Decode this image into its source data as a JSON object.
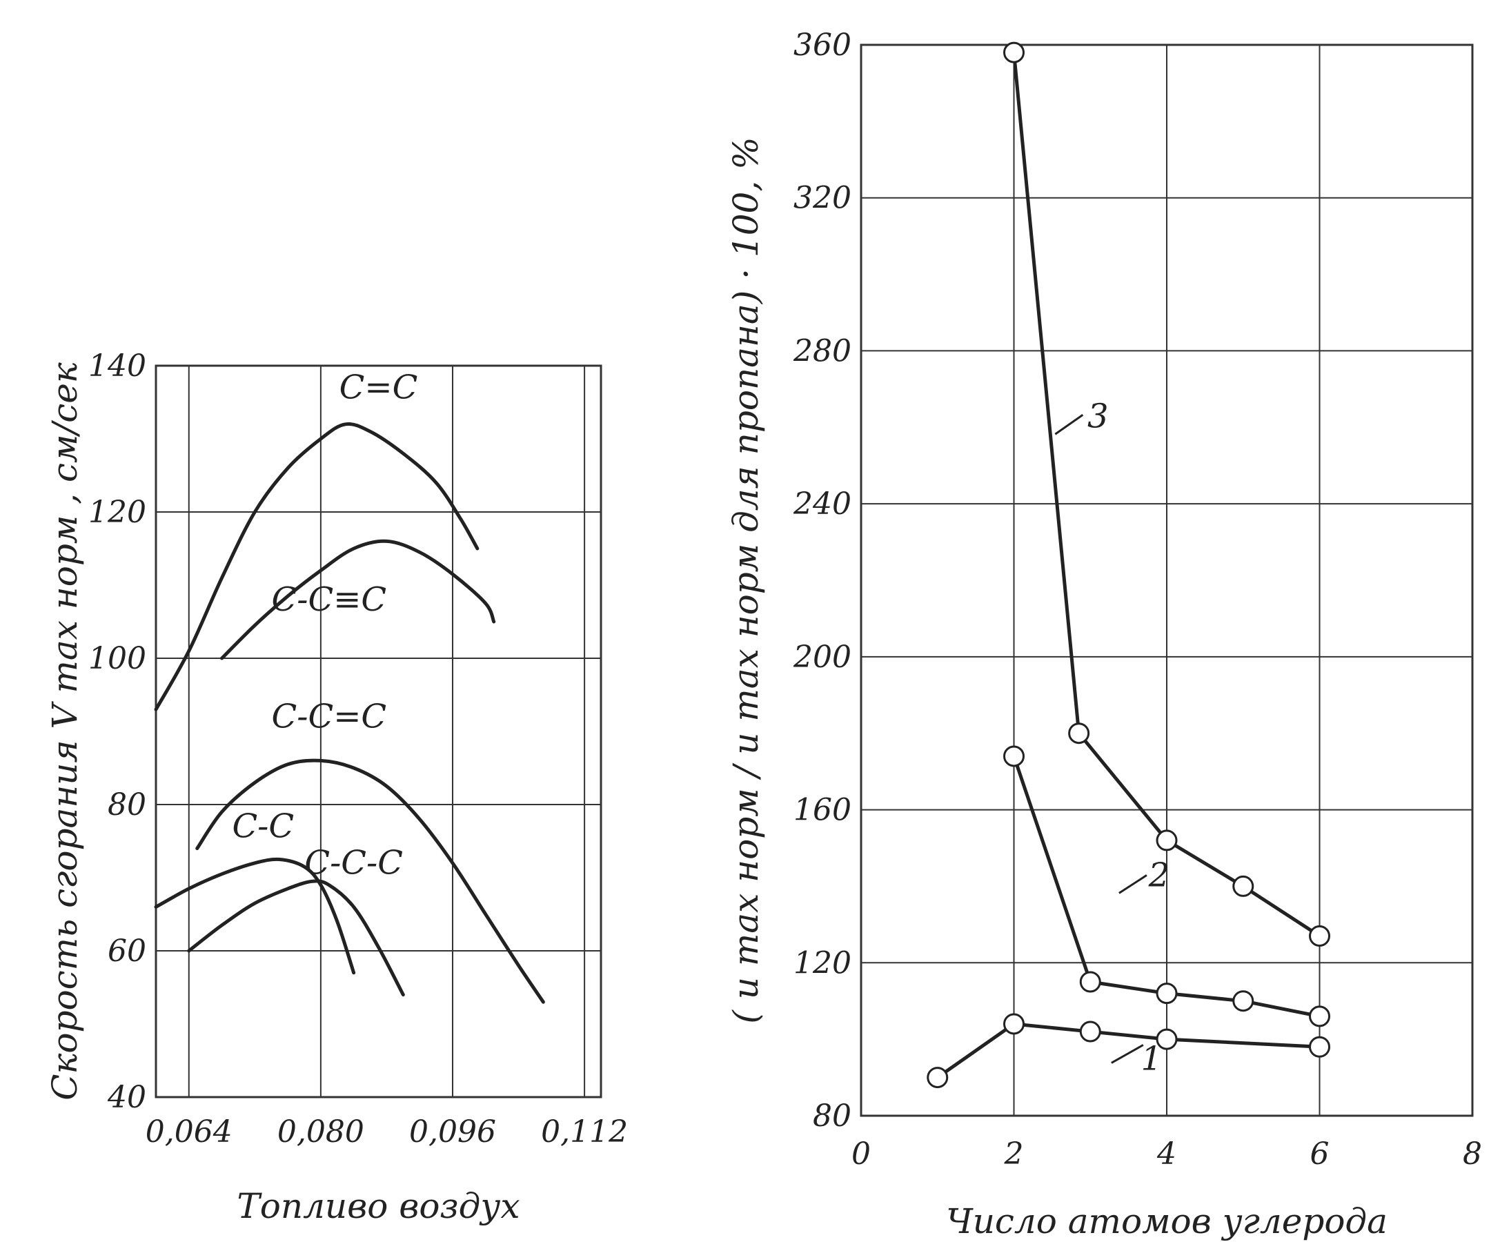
{
  "colors": {
    "ink": "#222222",
    "grid": "#333333",
    "paper": "#ffffff"
  },
  "chart_data": [
    {
      "type": "line",
      "xlabel": "Топливо воздух",
      "ylabel": "Скорость сгорания V max норм , см/сек",
      "xlim": [
        0.06,
        0.114
      ],
      "ylim": [
        40,
        140
      ],
      "xticks": [
        0.064,
        0.08,
        0.096,
        0.112
      ],
      "xtick_labels": [
        "0,064",
        "0,080",
        "0,096",
        "0,112"
      ],
      "yticks": [
        40,
        60,
        80,
        100,
        120,
        140
      ],
      "ytick_labels": [
        "40",
        "60",
        "80",
        "100",
        "120",
        "140"
      ],
      "grid": true,
      "series": [
        {
          "name": "C=C",
          "x": [
            0.06,
            0.064,
            0.068,
            0.072,
            0.076,
            0.08,
            0.083,
            0.086,
            0.09,
            0.094,
            0.097,
            0.099
          ],
          "values": [
            93,
            101,
            111,
            120,
            126,
            130,
            132,
            131,
            128,
            124,
            119,
            115
          ]
        },
        {
          "name": "C-C≡C",
          "x": [
            0.068,
            0.072,
            0.076,
            0.08,
            0.084,
            0.088,
            0.092,
            0.096,
            0.1,
            0.101
          ],
          "values": [
            100,
            104.5,
            108.5,
            112,
            115,
            116,
            114.5,
            111.5,
            107.5,
            105
          ]
        },
        {
          "name": "C-C=C",
          "x": [
            0.065,
            0.068,
            0.072,
            0.076,
            0.08,
            0.084,
            0.088,
            0.092,
            0.096,
            0.1,
            0.104,
            0.107
          ],
          "values": [
            74,
            79,
            83,
            85.5,
            86,
            85,
            82.5,
            78,
            72,
            65,
            58,
            53
          ]
        },
        {
          "name": "C-C",
          "x": [
            0.06,
            0.064,
            0.068,
            0.072,
            0.075,
            0.078,
            0.08,
            0.082,
            0.084
          ],
          "values": [
            66,
            68.5,
            70.5,
            72,
            72.5,
            71.5,
            69,
            64,
            57
          ]
        },
        {
          "name": "C-C-C",
          "x": [
            0.064,
            0.068,
            0.072,
            0.076,
            0.079,
            0.081,
            0.084,
            0.087,
            0.09
          ],
          "values": [
            60,
            63.5,
            66.5,
            68.5,
            69.5,
            69,
            66,
            60.5,
            54
          ]
        }
      ],
      "labels": [
        {
          "text": "C=C",
          "x": 0.087,
          "y": 135.5
        },
        {
          "text": "C-C≡C",
          "x": 0.081,
          "y": 106.5
        },
        {
          "text": "C-C=C",
          "x": 0.081,
          "y": 90.5
        },
        {
          "text": "C-C",
          "x": 0.073,
          "y": 75.5
        },
        {
          "text": "C-C-C",
          "x": 0.084,
          "y": 70.5
        }
      ]
    },
    {
      "type": "line",
      "xlabel": "Число атомов углерода",
      "ylabel": "( u max норм / u max норм для пропана) · 100, %",
      "xlim": [
        0,
        8
      ],
      "ylim": [
        80,
        360
      ],
      "xticks": [
        0,
        2,
        4,
        6,
        8
      ],
      "xtick_labels": [
        "0",
        "2",
        "4",
        "6",
        "8"
      ],
      "yticks": [
        80,
        120,
        160,
        200,
        240,
        280,
        320,
        360
      ],
      "ytick_labels": [
        "80",
        "120",
        "160",
        "200",
        "240",
        "280",
        "320",
        "360"
      ],
      "grid": true,
      "series": [
        {
          "name": "1",
          "x": [
            1,
            2,
            3,
            4,
            6
          ],
          "values": [
            90,
            104,
            102,
            100,
            98
          ]
        },
        {
          "name": "2",
          "x": [
            2,
            3,
            4,
            5,
            6
          ],
          "values": [
            174,
            115,
            112,
            110,
            106
          ]
        },
        {
          "name": "3",
          "x": [
            2,
            2.85,
            4,
            5,
            6
          ],
          "values": [
            358,
            180,
            152,
            140,
            127
          ]
        }
      ],
      "labels": [
        {
          "text": "1",
          "x": 3.8,
          "y": 92
        },
        {
          "text": "2",
          "x": 3.9,
          "y": 140
        },
        {
          "text": "3",
          "x": 3.1,
          "y": 260
        }
      ]
    }
  ]
}
